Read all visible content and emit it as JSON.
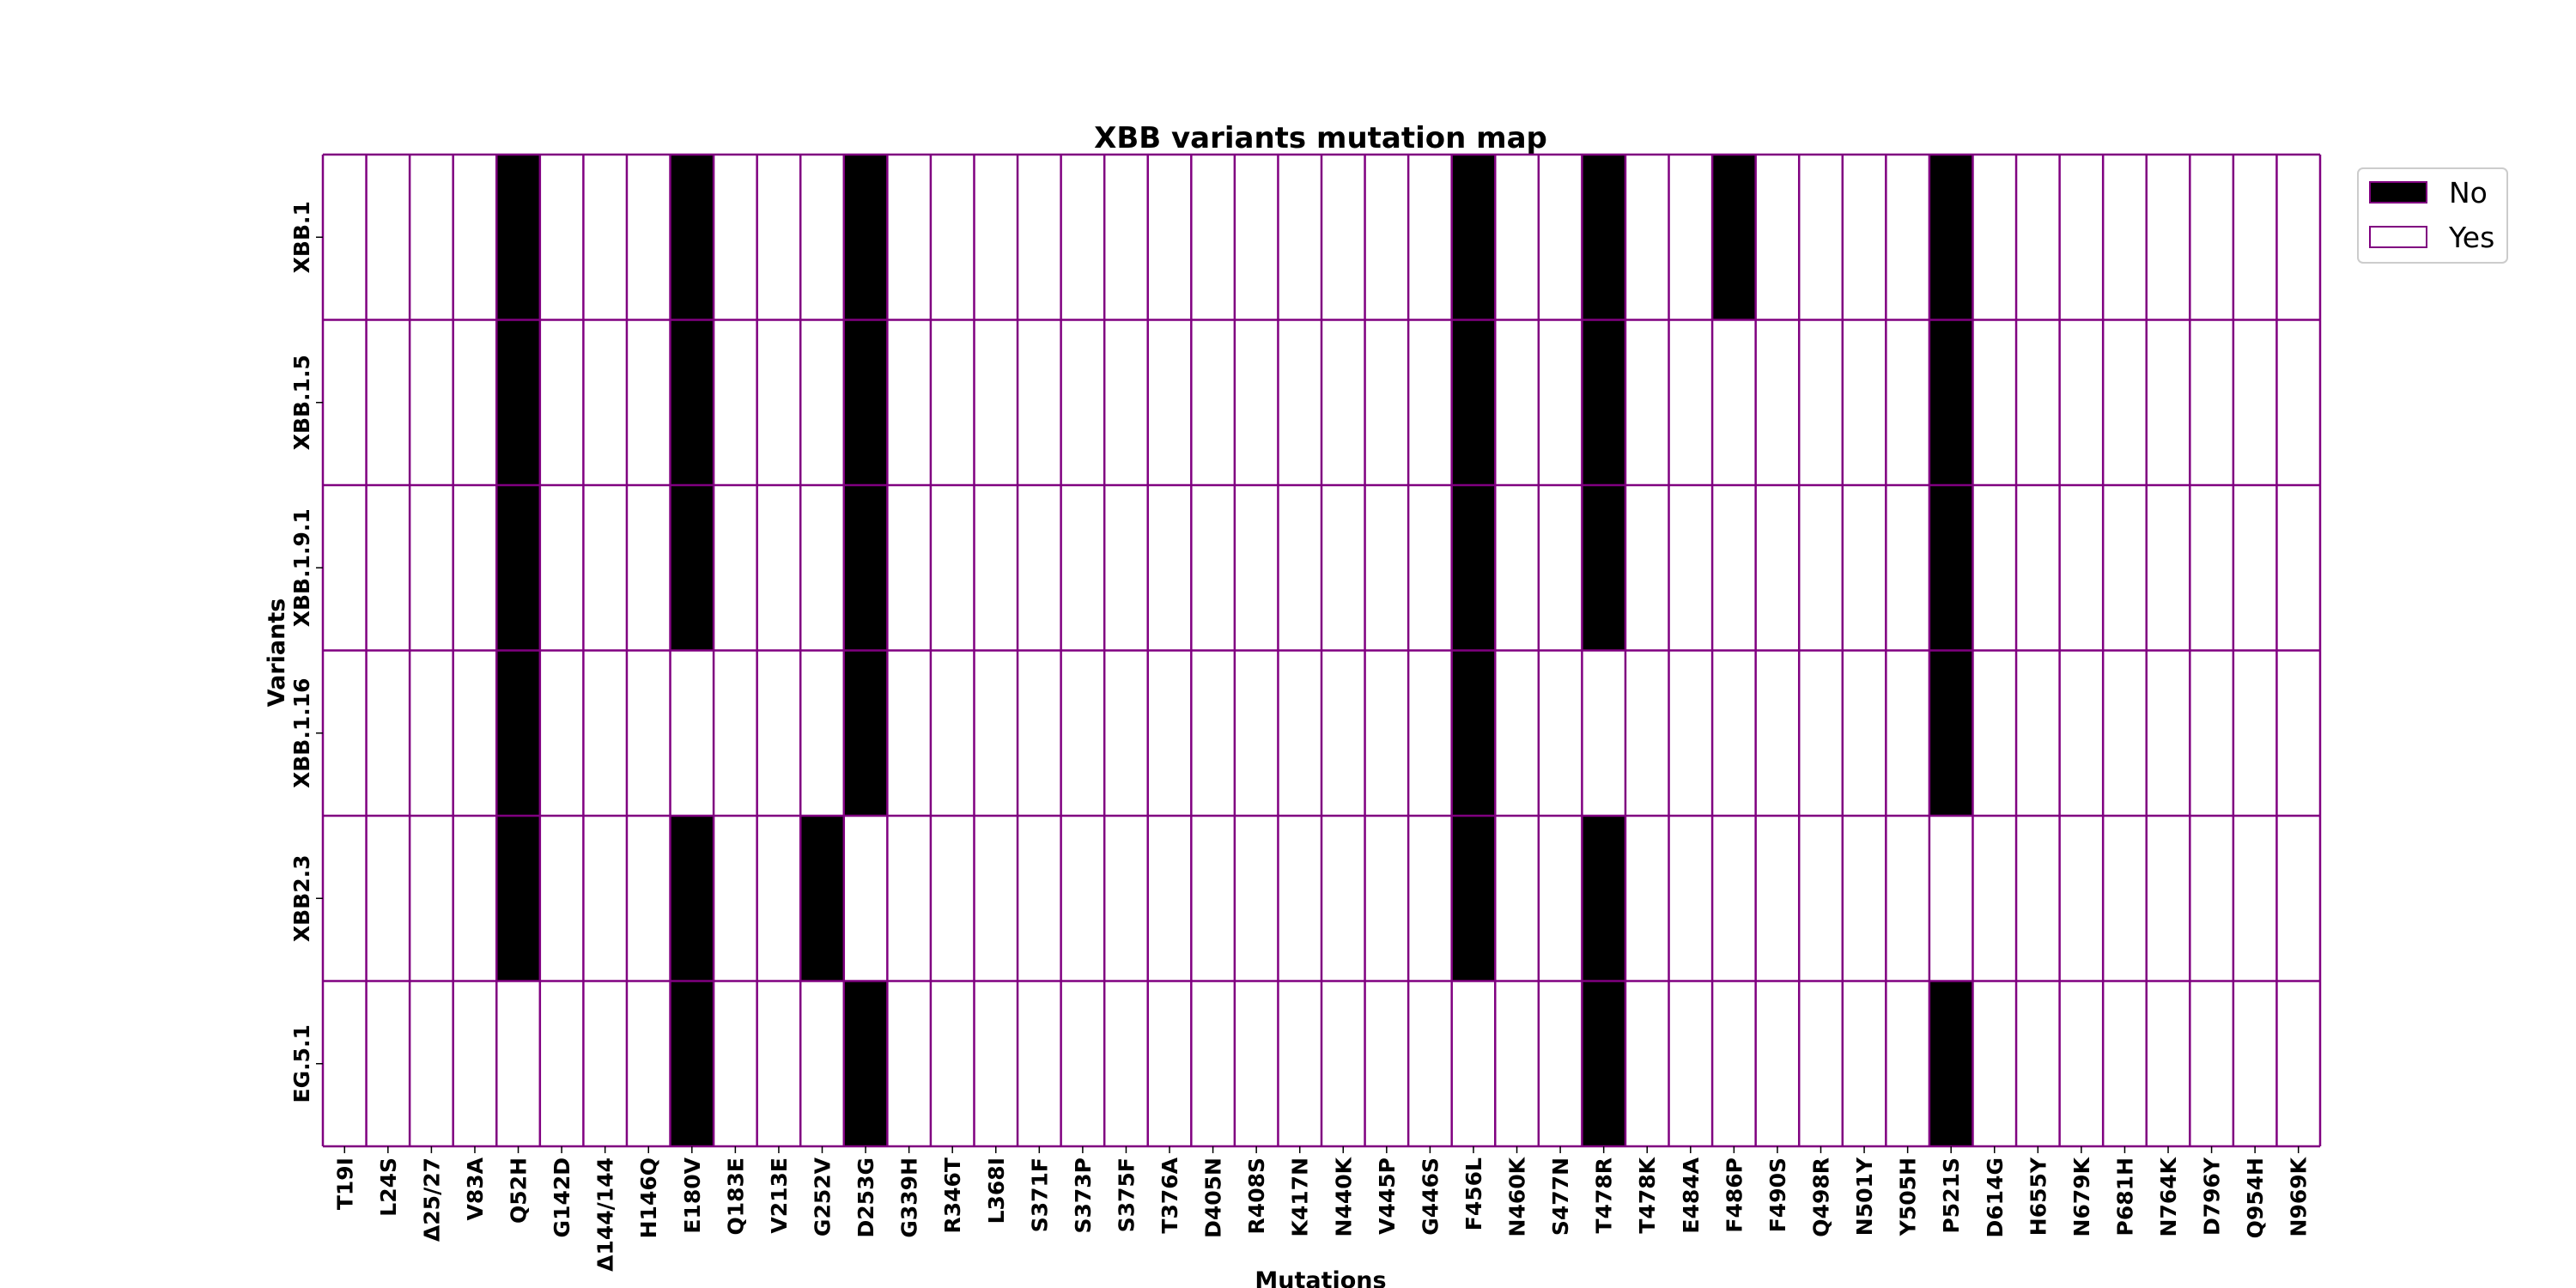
{
  "chart_data": {
    "type": "heatmap",
    "title": "XBB variants mutation map",
    "xlabel": "Mutations",
    "ylabel": "Variants",
    "columns": [
      "T19I",
      "L24S",
      "Δ25/27",
      "V83A",
      "Q52H",
      "G142D",
      "Δ144/144",
      "H146Q",
      "E180V",
      "Q183E",
      "V213E",
      "G252V",
      "D253G",
      "G339H",
      "R346T",
      "L368I",
      "S371F",
      "S373P",
      "S375F",
      "T376A",
      "D405N",
      "R408S",
      "K417N",
      "N440K",
      "V445P",
      "G446S",
      "F456L",
      "N460K",
      "S477N",
      "T478R",
      "T478K",
      "E484A",
      "F486P",
      "F490S",
      "Q498R",
      "N501Y",
      "Y505H",
      "P521S",
      "D614G",
      "H655Y",
      "N679K",
      "P681H",
      "N764K",
      "D796Y",
      "Q954H",
      "N969K"
    ],
    "rows": [
      "XBB.1",
      "XBB.1.5",
      "XBB.1.9.1",
      "XBB.1.16",
      "XBB2.3",
      "EG.5.1"
    ],
    "values": [
      [
        0,
        0,
        0,
        0,
        1,
        0,
        0,
        0,
        1,
        0,
        0,
        0,
        1,
        0,
        0,
        0,
        0,
        0,
        0,
        0,
        0,
        0,
        0,
        0,
        0,
        0,
        1,
        0,
        0,
        1,
        0,
        0,
        1,
        0,
        0,
        0,
        0,
        1,
        0,
        0,
        0,
        0,
        0,
        0,
        0,
        0
      ],
      [
        0,
        0,
        0,
        0,
        1,
        0,
        0,
        0,
        1,
        0,
        0,
        0,
        1,
        0,
        0,
        0,
        0,
        0,
        0,
        0,
        0,
        0,
        0,
        0,
        0,
        0,
        1,
        0,
        0,
        1,
        0,
        0,
        0,
        0,
        0,
        0,
        0,
        1,
        0,
        0,
        0,
        0,
        0,
        0,
        0,
        0
      ],
      [
        0,
        0,
        0,
        0,
        1,
        0,
        0,
        0,
        1,
        0,
        0,
        0,
        1,
        0,
        0,
        0,
        0,
        0,
        0,
        0,
        0,
        0,
        0,
        0,
        0,
        0,
        1,
        0,
        0,
        1,
        0,
        0,
        0,
        0,
        0,
        0,
        0,
        1,
        0,
        0,
        0,
        0,
        0,
        0,
        0,
        0
      ],
      [
        0,
        0,
        0,
        0,
        1,
        0,
        0,
        0,
        0,
        0,
        0,
        0,
        1,
        0,
        0,
        0,
        0,
        0,
        0,
        0,
        0,
        0,
        0,
        0,
        0,
        0,
        1,
        0,
        0,
        0,
        0,
        0,
        0,
        0,
        0,
        0,
        0,
        1,
        0,
        0,
        0,
        0,
        0,
        0,
        0,
        0
      ],
      [
        0,
        0,
        0,
        0,
        1,
        0,
        0,
        0,
        1,
        0,
        0,
        1,
        0,
        0,
        0,
        0,
        0,
        0,
        0,
        0,
        0,
        0,
        0,
        0,
        0,
        0,
        1,
        0,
        0,
        1,
        0,
        0,
        0,
        0,
        0,
        0,
        0,
        0,
        0,
        0,
        0,
        0,
        0,
        0,
        0,
        0
      ],
      [
        0,
        0,
        0,
        0,
        0,
        0,
        0,
        0,
        1,
        0,
        0,
        0,
        1,
        0,
        0,
        0,
        0,
        0,
        0,
        0,
        0,
        0,
        0,
        0,
        0,
        0,
        0,
        0,
        0,
        1,
        0,
        0,
        0,
        0,
        0,
        0,
        0,
        1,
        0,
        0,
        0,
        0,
        0,
        0,
        0,
        0
      ]
    ],
    "value_meaning": {
      "1": "No",
      "0": "Yes"
    },
    "legend": [
      {
        "label": "No",
        "value": 1,
        "color": "#000000"
      },
      {
        "label": "Yes",
        "value": 0,
        "color": "#ffffff"
      }
    ],
    "legend_position": "top-right",
    "colors": {
      "filled": "#000000",
      "empty": "#ffffff",
      "grid": "#800080",
      "legend_border": "#cccccc"
    },
    "grid": true
  }
}
